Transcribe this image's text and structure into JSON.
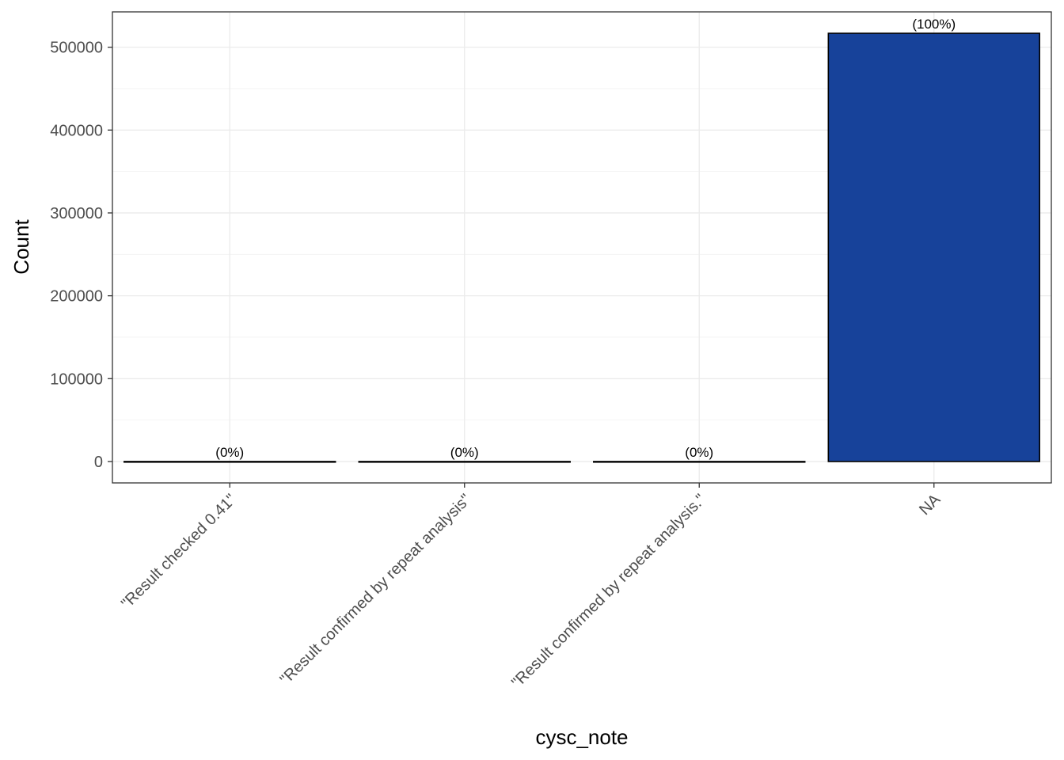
{
  "chart_data": {
    "type": "bar",
    "categories": [
      "\"Result checked 0.41\"",
      "\"Result confirmed by repeat analysis\"",
      "\"Result confirmed by repeat analysis.\"",
      "NA"
    ],
    "values": [
      1,
      1,
      1,
      516800
    ],
    "data_labels": [
      "(0%)",
      "(0%)",
      "(0%)",
      "(100%)"
    ],
    "xlabel": "cysc_note",
    "ylabel": "Count",
    "ylim": [
      -25840,
      542640
    ],
    "y_ticks": [
      0,
      100000,
      200000,
      300000,
      400000,
      500000
    ],
    "y_tick_labels": [
      "0",
      "100000",
      "200000",
      "300000",
      "400000",
      "500000"
    ],
    "y_minor_ticks": [
      50000,
      150000,
      250000,
      350000,
      450000
    ],
    "grid": true,
    "legend": "none",
    "bar_fill": "#17429a",
    "bar_outline": "#000000"
  }
}
